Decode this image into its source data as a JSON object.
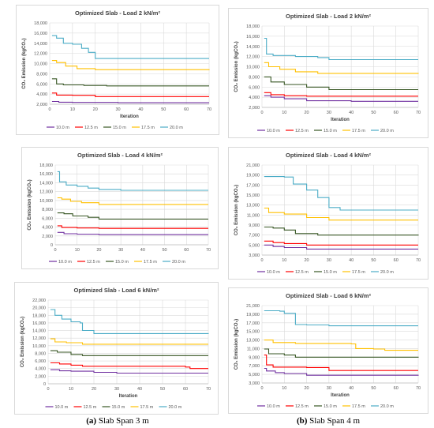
{
  "captions": [
    {
      "letter": "(a)",
      "text": " Slab Span 3 m"
    },
    {
      "letter": "(b)",
      "text": " Slab Span 4 m"
    }
  ],
  "series_colors": [
    "#7030a0",
    "#ff0000",
    "#375623",
    "#ffc000",
    "#4bacc6"
  ],
  "chart_data": [
    {
      "type": "line",
      "title": "Optimized Slab - Load 2 kN/m²",
      "ylabel": "CO₂ Emission (kgCO₂)",
      "xlabel": "Iteration",
      "ylim": [
        2000,
        18000
      ],
      "yticks": [
        2000,
        4000,
        6000,
        8000,
        10000,
        12000,
        14000,
        16000,
        18000
      ],
      "xlim": [
        0,
        70
      ],
      "xticks": [
        0,
        10,
        20,
        30,
        40,
        50,
        60,
        70
      ],
      "series": [
        {
          "name": "10.0 m",
          "values": [
            [
              1,
              2550
            ],
            [
              4,
              2400
            ],
            [
              10,
              2350
            ],
            [
              20,
              2350
            ],
            [
              30,
              2300
            ],
            [
              70,
              2300
            ]
          ]
        },
        {
          "name": "12.5 m",
          "values": [
            [
              1,
              4200
            ],
            [
              3,
              3800
            ],
            [
              10,
              3750
            ],
            [
              20,
              3500
            ],
            [
              70,
              3500
            ]
          ]
        },
        {
          "name": "15.0 m",
          "values": [
            [
              1,
              7000
            ],
            [
              3,
              6000
            ],
            [
              6,
              5800
            ],
            [
              15,
              5700
            ],
            [
              25,
              5600
            ],
            [
              70,
              5600
            ]
          ]
        },
        {
          "name": "17.5 m",
          "values": [
            [
              1,
              10600
            ],
            [
              3,
              10200
            ],
            [
              7,
              9500
            ],
            [
              12,
              9000
            ],
            [
              20,
              8800
            ],
            [
              70,
              8700
            ]
          ]
        },
        {
          "name": "20.0 m",
          "values": [
            [
              1,
              15500
            ],
            [
              3,
              15000
            ],
            [
              6,
              14000
            ],
            [
              10,
              13800
            ],
            [
              14,
              13000
            ],
            [
              17,
              12200
            ],
            [
              20,
              11000
            ],
            [
              70,
              11000
            ]
          ]
        }
      ]
    },
    {
      "type": "line",
      "title": "Optimized Slab - Load 2 kN/m²",
      "ylabel": "CO₂ Emission (kgCO₂)",
      "xlabel": "Iteration",
      "ylim": [
        2000,
        18000
      ],
      "yticks": [
        2000,
        4000,
        6000,
        8000,
        10000,
        12000,
        14000,
        16000,
        18000
      ],
      "xlim": [
        0,
        70
      ],
      "xticks": [
        0,
        10,
        20,
        30,
        40,
        50,
        60,
        70
      ],
      "series": [
        {
          "name": "10.0 m",
          "values": [
            [
              1,
              4300
            ],
            [
              4,
              4000
            ],
            [
              10,
              3700
            ],
            [
              20,
              3300
            ],
            [
              40,
              3200
            ],
            [
              70,
              3200
            ]
          ]
        },
        {
          "name": "12.5 m",
          "values": [
            [
              1,
              4900
            ],
            [
              4,
              4500
            ],
            [
              10,
              4300
            ],
            [
              20,
              4200
            ],
            [
              70,
              4200
            ]
          ]
        },
        {
          "name": "15.0 m",
          "values": [
            [
              1,
              8000
            ],
            [
              4,
              7000
            ],
            [
              10,
              6500
            ],
            [
              20,
              6000
            ],
            [
              30,
              5500
            ],
            [
              70,
              5500
            ]
          ]
        },
        {
          "name": "17.5 m",
          "values": [
            [
              1,
              10800
            ],
            [
              3,
              10000
            ],
            [
              8,
              9500
            ],
            [
              15,
              9000
            ],
            [
              25,
              8700
            ],
            [
              70,
              8600
            ]
          ]
        },
        {
          "name": "20.0 m",
          "values": [
            [
              1,
              15600
            ],
            [
              2,
              12500
            ],
            [
              5,
              12200
            ],
            [
              15,
              12000
            ],
            [
              25,
              11800
            ],
            [
              30,
              11400
            ],
            [
              70,
              11400
            ]
          ]
        }
      ]
    },
    {
      "type": "line",
      "title": "Optimized Slab - Load 4 kN/m²",
      "ylabel": "CO₂ Emission (kgCO₂)",
      "xlabel": "",
      "ylim": [
        0,
        18000
      ],
      "yticks": [
        0,
        2000,
        4000,
        6000,
        8000,
        10000,
        12000,
        14000,
        16000,
        18000
      ],
      "xlim": [
        0,
        70
      ],
      "xticks": [
        0,
        10,
        20,
        30,
        40,
        50,
        60,
        70
      ],
      "series": [
        {
          "name": "10.0 m",
          "values": [
            [
              1,
              2800
            ],
            [
              4,
              2500
            ],
            [
              10,
              2400
            ],
            [
              20,
              2300
            ],
            [
              70,
              2300
            ]
          ]
        },
        {
          "name": "12.5 m",
          "values": [
            [
              1,
              4300
            ],
            [
              3,
              3900
            ],
            [
              10,
              3800
            ],
            [
              20,
              3700
            ],
            [
              70,
              3700
            ]
          ]
        },
        {
          "name": "15.0 m",
          "values": [
            [
              1,
              7200
            ],
            [
              4,
              7000
            ],
            [
              8,
              6500
            ],
            [
              15,
              6200
            ],
            [
              20,
              5800
            ],
            [
              70,
              5800
            ]
          ]
        },
        {
          "name": "17.5 m",
          "values": [
            [
              1,
              10600
            ],
            [
              3,
              10300
            ],
            [
              7,
              9800
            ],
            [
              12,
              9500
            ],
            [
              20,
              9100
            ],
            [
              70,
              9100
            ]
          ]
        },
        {
          "name": "20.0 m",
          "values": [
            [
              1,
              16500
            ],
            [
              2,
              14200
            ],
            [
              5,
              13500
            ],
            [
              10,
              13200
            ],
            [
              15,
              12800
            ],
            [
              20,
              12500
            ],
            [
              30,
              12300
            ],
            [
              70,
              12300
            ]
          ]
        }
      ]
    },
    {
      "type": "line",
      "title": "Optimized Slab - Load 4 kN/m²",
      "ylabel": "CO₂ Emission (kgCO₂)",
      "xlabel": "",
      "ylim": [
        3000,
        21000
      ],
      "yticks": [
        3000,
        5000,
        7000,
        9000,
        11000,
        13000,
        15000,
        17000,
        19000,
        21000
      ],
      "xlim": [
        0,
        70
      ],
      "xticks": [
        0,
        10,
        20,
        30,
        40,
        50,
        60,
        70
      ],
      "series": [
        {
          "name": "10.0 m",
          "values": [
            [
              1,
              5000
            ],
            [
              5,
              4700
            ],
            [
              10,
              4500
            ],
            [
              20,
              4200
            ],
            [
              70,
              4200
            ]
          ]
        },
        {
          "name": "12.5 m",
          "values": [
            [
              1,
              5800
            ],
            [
              5,
              5500
            ],
            [
              10,
              5300
            ],
            [
              20,
              5000
            ],
            [
              70,
              5000
            ]
          ]
        },
        {
          "name": "15.0 m",
          "values": [
            [
              1,
              8600
            ],
            [
              5,
              8400
            ],
            [
              10,
              8000
            ],
            [
              15,
              7300
            ],
            [
              25,
              7000
            ],
            [
              70,
              6900
            ]
          ]
        },
        {
          "name": "17.5 m",
          "values": [
            [
              1,
              12400
            ],
            [
              3,
              11500
            ],
            [
              10,
              11200
            ],
            [
              20,
              10500
            ],
            [
              30,
              10000
            ],
            [
              70,
              10000
            ]
          ]
        },
        {
          "name": "20.0 m",
          "values": [
            [
              1,
              18700
            ],
            [
              10,
              18600
            ],
            [
              14,
              17200
            ],
            [
              20,
              16000
            ],
            [
              25,
              14500
            ],
            [
              30,
              12500
            ],
            [
              35,
              12000
            ],
            [
              70,
              12000
            ]
          ]
        }
      ]
    },
    {
      "type": "line",
      "title": "Optimized Slab - Load 6 kN/m²",
      "ylabel": "CO₂ Emission (kgCO₂)",
      "xlabel": "Iteration",
      "ylim": [
        0,
        22000
      ],
      "yticks": [
        0,
        2000,
        4000,
        6000,
        8000,
        10000,
        12000,
        14000,
        16000,
        18000,
        20000,
        22000
      ],
      "xlim": [
        0,
        70
      ],
      "xticks": [
        0,
        10,
        20,
        30,
        40,
        50,
        60,
        70
      ],
      "series": [
        {
          "name": "10.0 m",
          "values": [
            [
              1,
              3700
            ],
            [
              5,
              3400
            ],
            [
              10,
              3300
            ],
            [
              20,
              3000
            ],
            [
              30,
              2800
            ],
            [
              70,
              2800
            ]
          ]
        },
        {
          "name": "12.5 m",
          "values": [
            [
              1,
              5500
            ],
            [
              5,
              5200
            ],
            [
              10,
              4900
            ],
            [
              15,
              4600
            ],
            [
              60,
              4400
            ],
            [
              62,
              4000
            ],
            [
              70,
              4000
            ]
          ]
        },
        {
          "name": "15.0 m",
          "values": [
            [
              1,
              8700
            ],
            [
              4,
              8300
            ],
            [
              10,
              7700
            ],
            [
              15,
              7400
            ],
            [
              70,
              7400
            ]
          ]
        },
        {
          "name": "17.5 m",
          "values": [
            [
              1,
              11800
            ],
            [
              3,
              11000
            ],
            [
              8,
              10800
            ],
            [
              15,
              10400
            ],
            [
              70,
              10400
            ]
          ]
        },
        {
          "name": "20.0 m",
          "values": [
            [
              1,
              19500
            ],
            [
              3,
              18000
            ],
            [
              6,
              17000
            ],
            [
              10,
              16300
            ],
            [
              14,
              16000
            ],
            [
              15,
              14000
            ],
            [
              20,
              13200
            ],
            [
              70,
              13100
            ]
          ]
        }
      ]
    },
    {
      "type": "line",
      "title": "Optimized Slab - Load 6 kN/m²",
      "ylabel": "CO₂ Emission (kgCO₂)",
      "xlabel": "Iteration",
      "ylim": [
        3000,
        21000
      ],
      "yticks": [
        3000,
        5000,
        7000,
        9000,
        11000,
        13000,
        15000,
        17000,
        19000,
        21000
      ],
      "xlim": [
        0,
        70
      ],
      "xticks": [
        0,
        10,
        20,
        30,
        40,
        50,
        60,
        70
      ],
      "series": [
        {
          "name": "10.0 m",
          "values": [
            [
              1,
              6400
            ],
            [
              2,
              5800
            ],
            [
              6,
              5400
            ],
            [
              10,
              5200
            ],
            [
              20,
              4800
            ],
            [
              70,
              4700
            ]
          ]
        },
        {
          "name": "12.5 m",
          "values": [
            [
              1,
              9500
            ],
            [
              2,
              7200
            ],
            [
              5,
              6700
            ],
            [
              20,
              6600
            ],
            [
              30,
              5900
            ],
            [
              70,
              5900
            ]
          ]
        },
        {
          "name": "15.0 m",
          "values": [
            [
              1,
              10900
            ],
            [
              3,
              9800
            ],
            [
              10,
              9500
            ],
            [
              15,
              9000
            ],
            [
              70,
              8900
            ]
          ]
        },
        {
          "name": "17.5 m",
          "values": [
            [
              1,
              13000
            ],
            [
              5,
              12400
            ],
            [
              15,
              12200
            ],
            [
              40,
              12100
            ],
            [
              42,
              11000
            ],
            [
              50,
              10900
            ],
            [
              55,
              10600
            ],
            [
              70,
              10600
            ]
          ]
        },
        {
          "name": "20.0 m",
          "values": [
            [
              1,
              19800
            ],
            [
              8,
              19700
            ],
            [
              10,
              19200
            ],
            [
              15,
              16600
            ],
            [
              20,
              16500
            ],
            [
              30,
              16300
            ],
            [
              70,
              16300
            ]
          ]
        }
      ]
    }
  ]
}
